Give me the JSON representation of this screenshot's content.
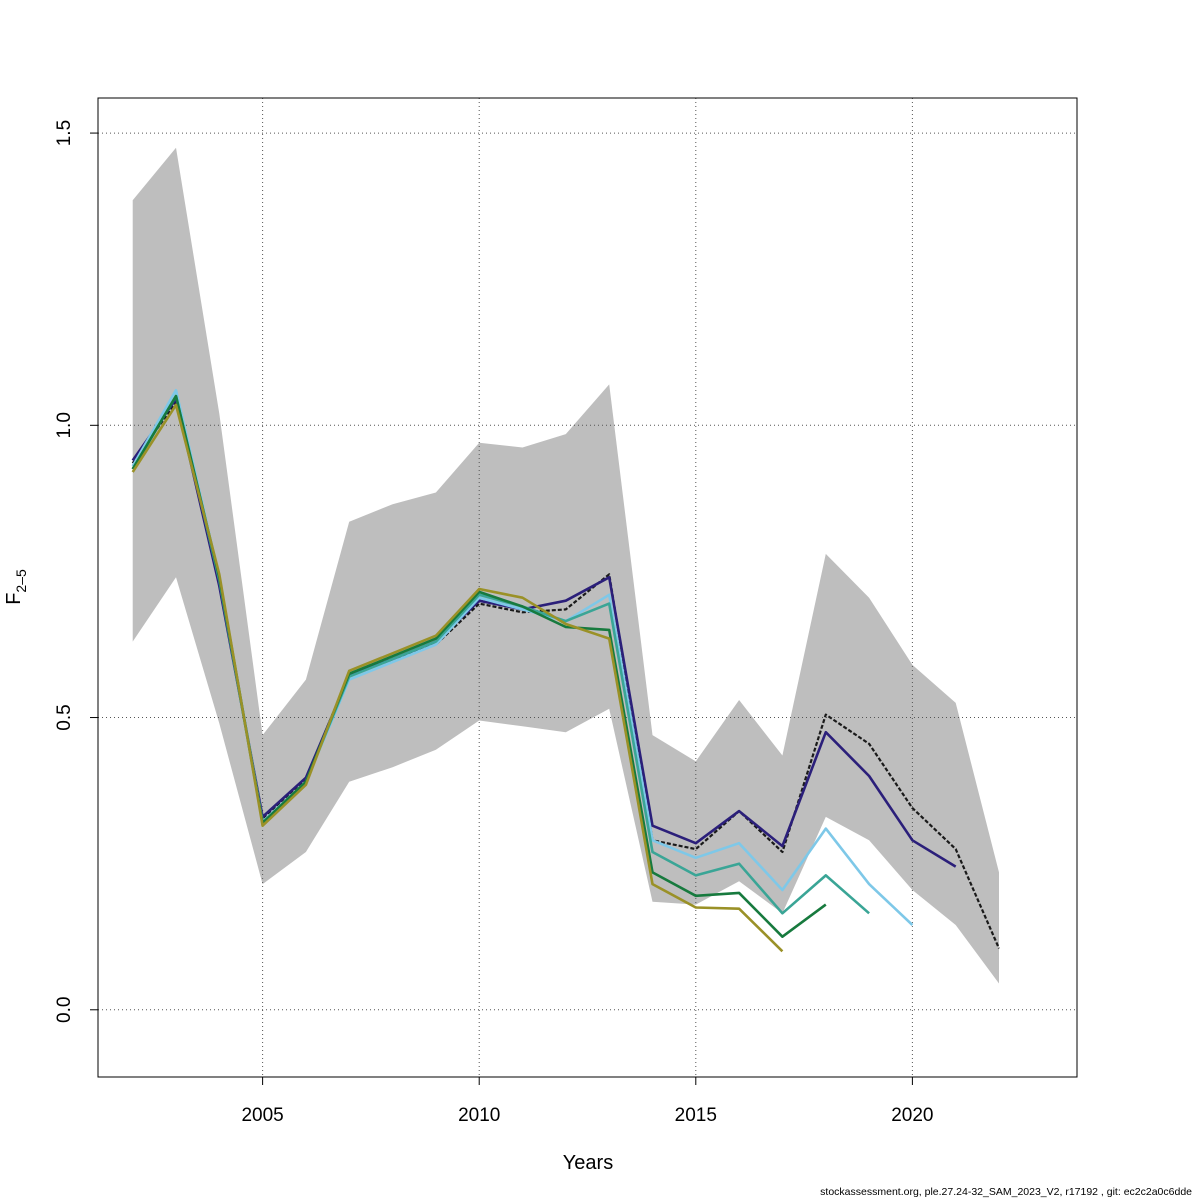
{
  "chart_data": {
    "type": "line",
    "xlabel": "Years",
    "ylabel_main": "F",
    "ylabel_sub": "2–5",
    "xlim": [
      2001.2,
      2023.8
    ],
    "ylim": [
      -0.115,
      1.56
    ],
    "x_ticks": [
      2005,
      2010,
      2015,
      2020
    ],
    "y_ticks": [
      0.0,
      0.5,
      1.0,
      1.5
    ],
    "y_tick_labels": [
      "0.0",
      "0.5",
      "1.0",
      "1.5"
    ],
    "grid": true,
    "band": {
      "color": "#bebebe",
      "x": [
        2002,
        2003,
        2004,
        2005,
        2006,
        2007,
        2008,
        2009,
        2010,
        2011,
        2012,
        2013,
        2014,
        2015,
        2016,
        2017,
        2018,
        2019,
        2020,
        2021,
        2022
      ],
      "lower": [
        0.63,
        0.74,
        0.49,
        0.215,
        0.27,
        0.39,
        0.415,
        0.445,
        0.495,
        0.485,
        0.475,
        0.515,
        0.185,
        0.18,
        0.22,
        0.165,
        0.33,
        0.29,
        0.205,
        0.145,
        0.045
      ],
      "upper": [
        1.385,
        1.475,
        1.02,
        0.47,
        0.565,
        0.835,
        0.865,
        0.885,
        0.97,
        0.962,
        0.985,
        1.07,
        0.47,
        0.425,
        0.53,
        0.435,
        0.78,
        0.705,
        0.59,
        0.525,
        0.235
      ]
    },
    "series": [
      {
        "color": "#1a1a1a",
        "dashed": true,
        "x": [
          2002,
          2003,
          2004,
          2005,
          2006,
          2007,
          2008,
          2009,
          2010,
          2011,
          2012,
          2013,
          2014,
          2015,
          2016,
          2017,
          2018,
          2019,
          2020,
          2021,
          2022
        ],
        "values": [
          0.935,
          1.04,
          0.735,
          0.325,
          0.395,
          0.575,
          0.6,
          0.625,
          0.695,
          0.68,
          0.685,
          0.745,
          0.29,
          0.275,
          0.34,
          0.27,
          0.505,
          0.455,
          0.345,
          0.275,
          0.105
        ]
      },
      {
        "color": "#2b1f7a",
        "x": [
          2002,
          2003,
          2004,
          2005,
          2006,
          2007,
          2008,
          2009,
          2010,
          2011,
          2012,
          2013,
          2014,
          2015,
          2016,
          2017,
          2018,
          2019,
          2020,
          2021
        ],
        "values": [
          0.94,
          1.045,
          0.725,
          0.33,
          0.397,
          0.572,
          0.6,
          0.63,
          0.7,
          0.685,
          0.7,
          0.74,
          0.315,
          0.285,
          0.34,
          0.28,
          0.475,
          0.4,
          0.29,
          0.245
        ]
      },
      {
        "color": "#7ec8e8",
        "x": [
          2002,
          2003,
          2004,
          2005,
          2006,
          2007,
          2008,
          2009,
          2010,
          2011,
          2012,
          2013,
          2014,
          2015,
          2016,
          2017,
          2018,
          2019,
          2020
        ],
        "values": [
          0.93,
          1.06,
          0.74,
          0.322,
          0.39,
          0.565,
          0.595,
          0.625,
          0.705,
          0.685,
          0.665,
          0.71,
          0.29,
          0.26,
          0.285,
          0.205,
          0.31,
          0.215,
          0.145
        ]
      },
      {
        "color": "#3aa596",
        "x": [
          2002,
          2003,
          2004,
          2005,
          2006,
          2007,
          2008,
          2009,
          2010,
          2011,
          2012,
          2013,
          2014,
          2015,
          2016,
          2017,
          2018,
          2019
        ],
        "values": [
          0.925,
          1.05,
          0.735,
          0.32,
          0.39,
          0.57,
          0.6,
          0.63,
          0.71,
          0.69,
          0.665,
          0.695,
          0.27,
          0.23,
          0.25,
          0.165,
          0.23,
          0.165
        ]
      },
      {
        "color": "#177a3e",
        "x": [
          2002,
          2003,
          2004,
          2005,
          2006,
          2007,
          2008,
          2009,
          2010,
          2011,
          2012,
          2013,
          2014,
          2015,
          2016,
          2017,
          2018
        ],
        "values": [
          0.925,
          1.05,
          0.74,
          0.32,
          0.39,
          0.575,
          0.605,
          0.635,
          0.715,
          0.69,
          0.655,
          0.65,
          0.235,
          0.195,
          0.2,
          0.125,
          0.18
        ]
      },
      {
        "color": "#9a9127",
        "x": [
          2002,
          2003,
          2004,
          2005,
          2006,
          2007,
          2008,
          2009,
          2010,
          2011,
          2012,
          2013,
          2014,
          2015,
          2016,
          2017
        ],
        "values": [
          0.92,
          1.035,
          0.745,
          0.315,
          0.385,
          0.58,
          0.61,
          0.64,
          0.72,
          0.705,
          0.66,
          0.635,
          0.215,
          0.175,
          0.173,
          0.1
        ]
      }
    ]
  },
  "footer": "stockassessment.org, ple.27.24-32_SAM_2023_V2, r17192 , git: ec2c2a0c6dde"
}
